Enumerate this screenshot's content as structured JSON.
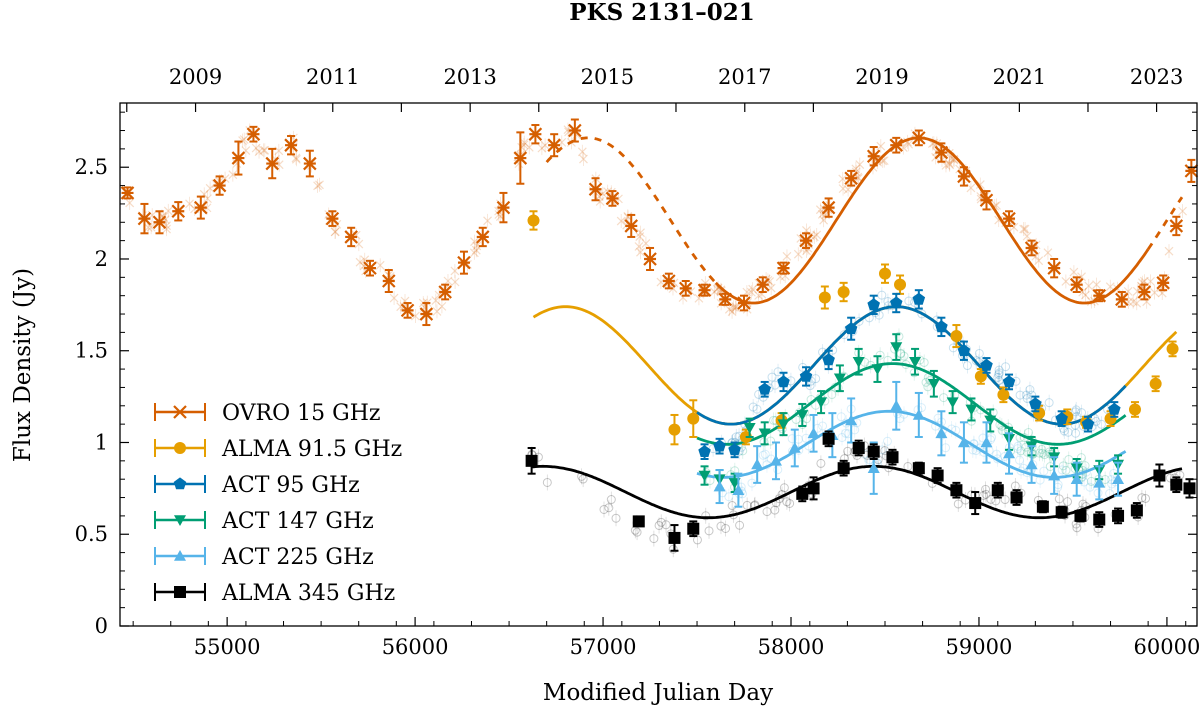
{
  "chart_data": {
    "type": "scatter",
    "title": "PKS 2131–021",
    "xlabel": "Modified Julian Day",
    "ylabel": "Flux Density (Jy)",
    "xlim": [
      54430,
      60160
    ],
    "ylim": [
      0,
      2.85
    ],
    "xticks": [
      55000,
      56000,
      57000,
      58000,
      59000,
      60000
    ],
    "yticks": [
      0,
      0.5,
      1,
      1.5,
      2,
      2.5
    ],
    "ytick_labels": [
      "0",
      "0.5",
      "1",
      "1.5",
      "2",
      "2.5"
    ],
    "top_axis": {
      "label_years": [
        "2009",
        "2011",
        "2013",
        "2015",
        "2017",
        "2019",
        "2021",
        "2023"
      ],
      "label_mjd": [
        54832,
        55562,
        56293,
        57023,
        57754,
        58484,
        59215,
        59945
      ],
      "minor_mjd": [
        54466,
        55197,
        55927,
        56658,
        57388,
        58119,
        58849,
        59580
      ]
    },
    "legend_position": "lower-left",
    "series": [
      {
        "name": "OVRO 15 GHz",
        "color": "#d55e00",
        "marker": "x",
        "x": [
          54470,
          54560,
          54640,
          54740,
          54860,
          54960,
          55060,
          55140,
          55240,
          55340,
          55440,
          55560,
          55660,
          55760,
          55860,
          55960,
          56060,
          56160,
          56260,
          56360,
          56470,
          56560,
          56640,
          56740,
          56850,
          56960,
          57050,
          57150,
          57250,
          57350,
          57440,
          57540,
          57650,
          57750,
          57850,
          57960,
          58080,
          58200,
          58320,
          58440,
          58560,
          58680,
          58800,
          58920,
          59040,
          59160,
          59280,
          59400,
          59520,
          59640,
          59760,
          59880,
          59980,
          60050,
          60130
        ],
        "y": [
          2.36,
          2.22,
          2.2,
          2.26,
          2.28,
          2.4,
          2.55,
          2.68,
          2.52,
          2.62,
          2.52,
          2.22,
          2.12,
          1.95,
          1.88,
          1.72,
          1.7,
          1.82,
          1.98,
          2.12,
          2.28,
          2.55,
          2.68,
          2.62,
          2.7,
          2.38,
          2.33,
          2.18,
          2.0,
          1.88,
          1.84,
          1.83,
          1.78,
          1.76,
          1.86,
          1.95,
          2.1,
          2.28,
          2.44,
          2.56,
          2.62,
          2.66,
          2.58,
          2.45,
          2.32,
          2.22,
          2.06,
          1.95,
          1.86,
          1.8,
          1.78,
          1.82,
          1.87,
          2.18,
          2.48
        ],
        "err": [
          0.03,
          0.08,
          0.06,
          0.05,
          0.06,
          0.05,
          0.09,
          0.04,
          0.08,
          0.05,
          0.07,
          0.04,
          0.05,
          0.04,
          0.06,
          0.04,
          0.06,
          0.04,
          0.06,
          0.05,
          0.08,
          0.14,
          0.05,
          0.06,
          0.06,
          0.06,
          0.04,
          0.06,
          0.06,
          0.04,
          0.04,
          0.03,
          0.03,
          0.04,
          0.04,
          0.03,
          0.04,
          0.05,
          0.04,
          0.05,
          0.04,
          0.04,
          0.05,
          0.05,
          0.05,
          0.04,
          0.04,
          0.05,
          0.04,
          0.03,
          0.04,
          0.04,
          0.04,
          0.05,
          0.06
        ]
      },
      {
        "name": "ALMA 91.5 GHz",
        "color": "#e69f00",
        "marker": "circle",
        "x": [
          56630,
          57380,
          57480,
          57760,
          57950,
          58180,
          58280,
          58500,
          58580,
          58880,
          59010,
          59130,
          59320,
          59470,
          59570,
          59700,
          59830,
          59940,
          60030
        ],
        "y": [
          2.21,
          1.07,
          1.13,
          1.03,
          1.12,
          1.79,
          1.82,
          1.92,
          1.86,
          1.58,
          1.36,
          1.26,
          1.16,
          1.14,
          1.11,
          1.13,
          1.18,
          1.32,
          1.51
        ],
        "err": [
          0.05,
          0.08,
          0.1,
          0.04,
          0.04,
          0.06,
          0.05,
          0.05,
          0.05,
          0.06,
          0.04,
          0.04,
          0.04,
          0.04,
          0.03,
          0.04,
          0.04,
          0.04,
          0.04
        ]
      },
      {
        "name": "ACT 95 GHz",
        "color": "#0072b2",
        "marker": "pentagon",
        "x": [
          57540,
          57620,
          57700,
          57860,
          57960,
          58080,
          58200,
          58320,
          58440,
          58560,
          58680,
          58800,
          58920,
          59040,
          59160,
          59300,
          59440,
          59580,
          59720
        ],
        "y": [
          0.95,
          0.98,
          0.96,
          1.29,
          1.33,
          1.36,
          1.45,
          1.62,
          1.75,
          1.76,
          1.78,
          1.63,
          1.5,
          1.42,
          1.33,
          1.21,
          1.13,
          1.1,
          1.18
        ],
        "err": [
          0.04,
          0.04,
          0.04,
          0.04,
          0.05,
          0.05,
          0.05,
          0.06,
          0.05,
          0.05,
          0.05,
          0.05,
          0.05,
          0.04,
          0.04,
          0.04,
          0.04,
          0.04,
          0.04
        ]
      },
      {
        "name": "ACT 147 GHz",
        "color": "#009e73",
        "marker": "triangle-down",
        "x": [
          57540,
          57620,
          57700,
          57780,
          57860,
          57960,
          58060,
          58160,
          58260,
          58360,
          58460,
          58560,
          58660,
          58760,
          58860,
          58960,
          59060,
          59160,
          59280,
          59400,
          59520,
          59640,
          59740
        ],
        "y": [
          0.82,
          0.8,
          0.78,
          1.08,
          1.05,
          1.1,
          1.15,
          1.22,
          1.35,
          1.44,
          1.4,
          1.52,
          1.44,
          1.32,
          1.22,
          1.18,
          1.12,
          1.02,
          0.98,
          0.92,
          0.86,
          0.85,
          0.88
        ],
        "err": [
          0.05,
          0.05,
          0.05,
          0.05,
          0.06,
          0.06,
          0.06,
          0.06,
          0.07,
          0.07,
          0.07,
          0.07,
          0.07,
          0.07,
          0.06,
          0.06,
          0.06,
          0.06,
          0.05,
          0.05,
          0.05,
          0.05,
          0.05
        ]
      },
      {
        "name": "ACT 225 GHz",
        "color": "#56b4e9",
        "marker": "triangle-up",
        "x": [
          57620,
          57720,
          57820,
          57920,
          58020,
          58120,
          58220,
          58320,
          58440,
          58560,
          58680,
          58800,
          58920,
          59040,
          59160,
          59280,
          59400,
          59520,
          59640,
          59740
        ],
        "y": [
          0.76,
          0.74,
          0.88,
          0.9,
          0.97,
          1.05,
          1.04,
          1.12,
          0.86,
          1.2,
          1.15,
          1.05,
          1.0,
          1.0,
          0.94,
          0.88,
          0.82,
          0.8,
          0.78,
          0.8
        ],
        "err": [
          0.09,
          0.09,
          0.1,
          0.1,
          0.1,
          0.1,
          0.12,
          0.12,
          0.14,
          0.13,
          0.12,
          0.12,
          0.11,
          0.11,
          0.11,
          0.1,
          0.1,
          0.09,
          0.09,
          0.09
        ]
      },
      {
        "name": "ALMA 345 GHz",
        "color": "#000000",
        "marker": "square",
        "x": [
          56620,
          57190,
          57380,
          57480,
          58060,
          58120,
          58200,
          58280,
          58360,
          58440,
          58540,
          58680,
          58780,
          58880,
          58980,
          59100,
          59200,
          59340,
          59440,
          59540,
          59640,
          59740,
          59840,
          59960,
          60050,
          60120
        ],
        "y": [
          0.9,
          0.57,
          0.48,
          0.53,
          0.72,
          0.75,
          1.02,
          0.86,
          0.97,
          0.95,
          0.92,
          0.86,
          0.82,
          0.74,
          0.67,
          0.74,
          0.7,
          0.65,
          0.62,
          0.6,
          0.58,
          0.6,
          0.63,
          0.82,
          0.77,
          0.75
        ],
        "err": [
          0.07,
          0.02,
          0.07,
          0.04,
          0.04,
          0.06,
          0.04,
          0.04,
          0.04,
          0.04,
          0.04,
          0.03,
          0.04,
          0.04,
          0.06,
          0.04,
          0.04,
          0.03,
          0.03,
          0.03,
          0.04,
          0.04,
          0.04,
          0.06,
          0.04,
          0.05
        ]
      }
    ],
    "fits": [
      {
        "name": "OVRO fit",
        "color": "#d55e00",
        "x0": 56700,
        "x1": 60080,
        "mean": 2.21,
        "amp": 0.45,
        "period": 1760,
        "peak": 58680,
        "dashed": [
          [
            56700,
            57600
          ],
          [
            59900,
            60080
          ]
        ]
      },
      {
        "name": "ALMA 91.5 fit",
        "color": "#e69f00",
        "x0": 56630,
        "x1": 60050,
        "mean": 1.42,
        "amp": 0.32,
        "period": 1760,
        "peak": 58560
      },
      {
        "name": "ACT 95 fit",
        "color": "#0072b2",
        "x0": 57500,
        "x1": 59780,
        "mean": 1.42,
        "amp": 0.32,
        "period": 1760,
        "peak": 58560
      },
      {
        "name": "ACT 147 fit",
        "color": "#009e73",
        "x0": 57500,
        "x1": 59780,
        "mean": 1.21,
        "amp": 0.22,
        "period": 1760,
        "peak": 58540
      },
      {
        "name": "ACT 225 fit",
        "color": "#56b4e9",
        "x0": 57500,
        "x1": 59780,
        "mean": 0.99,
        "amp": 0.18,
        "period": 1760,
        "peak": 58520
      },
      {
        "name": "ALMA 345 fit",
        "color": "#000000",
        "x0": 56620,
        "x1": 60080,
        "mean": 0.73,
        "amp": 0.14,
        "period": 1760,
        "peak": 58440
      }
    ]
  }
}
